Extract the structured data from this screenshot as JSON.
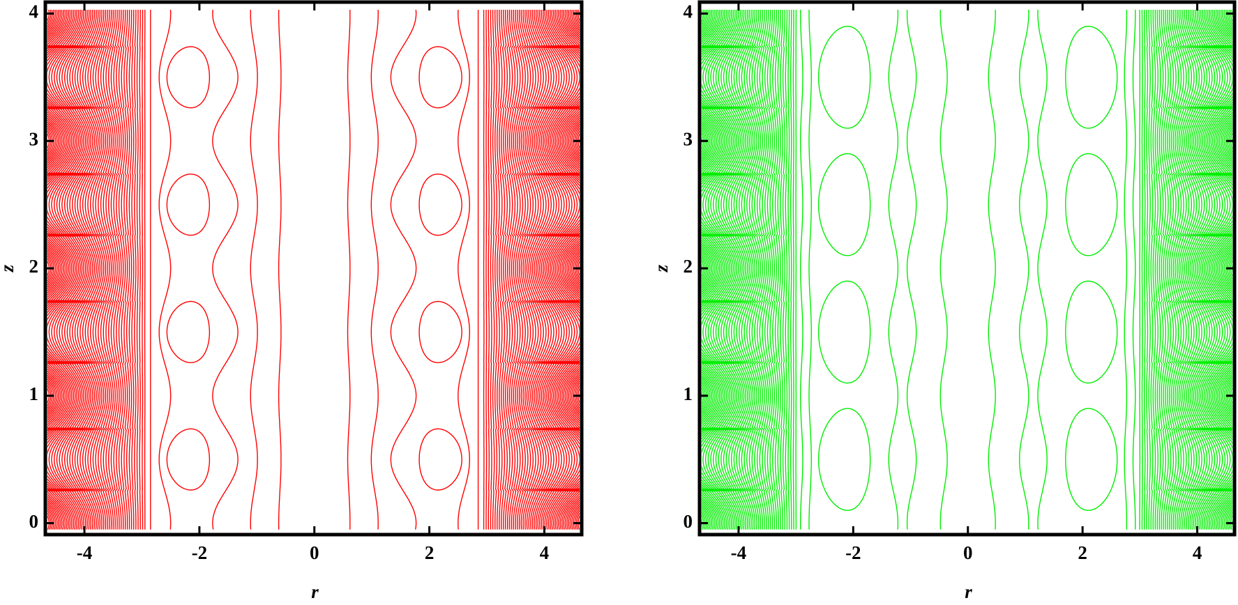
{
  "chart_data": [
    {
      "type": "contour",
      "color": "#ff0000",
      "x_label": "r",
      "y_label": "z",
      "xlim": [
        -4.68,
        4.65
      ],
      "ylim": [
        -0.09,
        4.09
      ],
      "xticks": [
        -4,
        -2,
        0,
        2,
        4
      ],
      "yticks": [
        0,
        1,
        2,
        3,
        4
      ]
    },
    {
      "type": "contour",
      "color": "#00ee00",
      "x_label": "r",
      "y_label": "z",
      "xlim": [
        -4.68,
        4.65
      ],
      "ylim": [
        -0.09,
        4.09
      ],
      "xticks": [
        -4,
        -2,
        0,
        2,
        4
      ],
      "yticks": [
        0,
        1,
        2,
        3,
        4
      ]
    }
  ]
}
